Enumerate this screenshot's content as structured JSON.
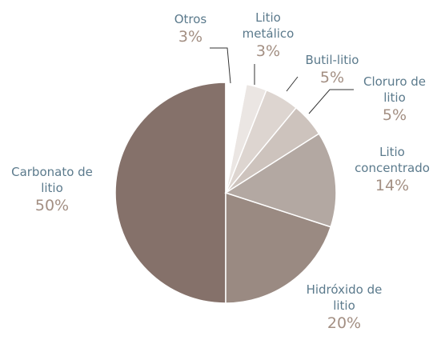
{
  "chart_data": {
    "type": "pie",
    "categories": [
      "Otros",
      "Litio metálico",
      "Butil-litio",
      "Cloruro de litio",
      "Litio concentrado",
      "Hidróxido de litio",
      "Carbonato de litio"
    ],
    "values": [
      3,
      3,
      5,
      5,
      14,
      20,
      50
    ],
    "value_labels": [
      "3%",
      "3%",
      "5%",
      "5%",
      "14%",
      "20%",
      "50%"
    ],
    "colors": [
      "#ffffff",
      "#ebe6e3",
      "#ddd5d0",
      "#cdc3bd",
      "#b3a8a2",
      "#9a8a82",
      "#85716a"
    ]
  }
}
